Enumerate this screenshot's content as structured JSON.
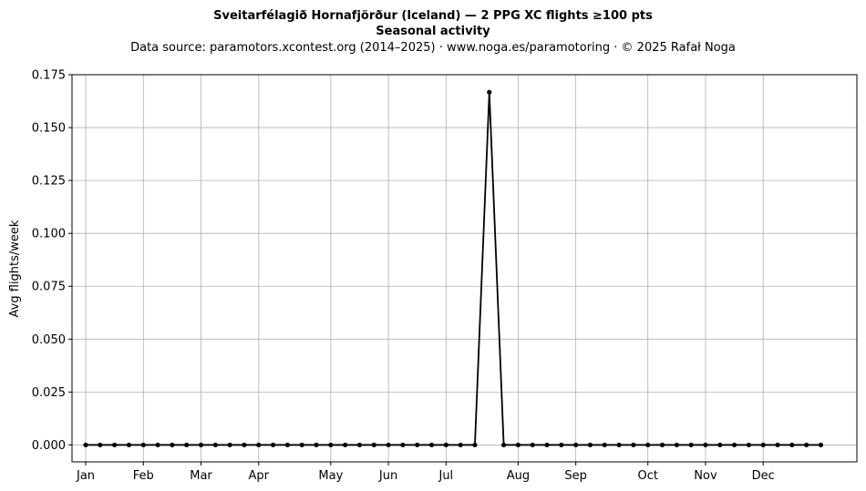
{
  "chart_data": {
    "type": "line",
    "title": "Sveitarfélagið Hornafjörður (Iceland)  —  2 PPG XC flights ≥100 pts",
    "subtitle": "Seasonal activity",
    "source_line": "Data source: paramotors.xcontest.org (2014–2025)  ·  www.noga.es/paramotoring  ·  © 2025 Rafał Noga",
    "xlabel": "",
    "ylabel": "Avg flights/week",
    "ylim": [
      -0.008,
      0.175
    ],
    "xlim": [
      0.05,
      54.5
    ],
    "grid": true,
    "legend": "none",
    "line_color": "#000000",
    "x_ticks": [
      {
        "label": "Jan",
        "week": 1
      },
      {
        "label": "Feb",
        "week": 5
      },
      {
        "label": "Mar",
        "week": 9
      },
      {
        "label": "Apr",
        "week": 13
      },
      {
        "label": "May",
        "week": 18
      },
      {
        "label": "Jun",
        "week": 22
      },
      {
        "label": "Jul",
        "week": 26
      },
      {
        "label": "Aug",
        "week": 31
      },
      {
        "label": "Sep",
        "week": 35
      },
      {
        "label": "Oct",
        "week": 40
      },
      {
        "label": "Nov",
        "week": 44
      },
      {
        "label": "Dec",
        "week": 48
      }
    ],
    "y_ticks": [
      "0.000",
      "0.025",
      "0.050",
      "0.075",
      "0.100",
      "0.125",
      "0.150",
      "0.175"
    ],
    "x": [
      1,
      2,
      3,
      4,
      5,
      6,
      7,
      8,
      9,
      10,
      11,
      12,
      13,
      14,
      15,
      16,
      17,
      18,
      19,
      20,
      21,
      22,
      23,
      24,
      25,
      26,
      27,
      28,
      29,
      30,
      31,
      32,
      33,
      34,
      35,
      36,
      37,
      38,
      39,
      40,
      41,
      42,
      43,
      44,
      45,
      46,
      47,
      48,
      49,
      50,
      51,
      52
    ],
    "values": [
      0,
      0,
      0,
      0,
      0,
      0,
      0,
      0,
      0,
      0,
      0,
      0,
      0,
      0,
      0,
      0,
      0,
      0,
      0,
      0,
      0,
      0,
      0,
      0,
      0,
      0,
      0,
      0,
      0.1667,
      0,
      0,
      0,
      0,
      0,
      0,
      0,
      0,
      0,
      0,
      0,
      0,
      0,
      0,
      0,
      0,
      0,
      0,
      0,
      0,
      0,
      0,
      0
    ]
  }
}
